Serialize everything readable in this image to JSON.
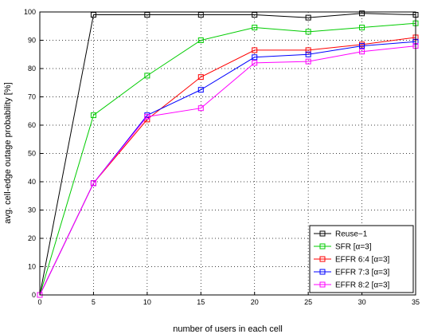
{
  "chart_data": {
    "type": "line",
    "xlabel": "number of users in each cell",
    "ylabel": "avg. cell-edge outage probability [%]",
    "xlim": [
      0,
      35
    ],
    "ylim": [
      0,
      100
    ],
    "xticks": [
      "0",
      "5",
      "10",
      "15",
      "20",
      "25",
      "30",
      "35"
    ],
    "yticks": [
      "0",
      "10",
      "20",
      "30",
      "40",
      "50",
      "60",
      "70",
      "80",
      "90",
      "100"
    ],
    "grid": true,
    "legend_position": "bottom-right",
    "x": [
      0,
      5,
      10,
      15,
      20,
      25,
      30,
      35
    ],
    "series": [
      {
        "name": "Reuse−1",
        "color": "#000000",
        "values": [
          0,
          99,
          99,
          99,
          99,
          98,
          99.5,
          99
        ]
      },
      {
        "name": "SFR [α=3]",
        "color": "#00cc00",
        "values": [
          0,
          63.5,
          77.5,
          90,
          94.5,
          93,
          94.5,
          96
        ]
      },
      {
        "name": "EFFR 6:4 [α=3]",
        "color": "#ff0000",
        "values": [
          0,
          39.5,
          62,
          77,
          86.5,
          86.5,
          88.5,
          91
        ]
      },
      {
        "name": "EFFR 7:3 [α=3]",
        "color": "#0000ff",
        "values": [
          0,
          39.5,
          63.5,
          72.5,
          84,
          85,
          88,
          89.5
        ]
      },
      {
        "name": "EFFR 8:2 [α=3]",
        "color": "#ff00ff",
        "values": [
          0,
          39.5,
          63,
          66,
          82,
          82.5,
          86,
          88
        ]
      }
    ]
  }
}
